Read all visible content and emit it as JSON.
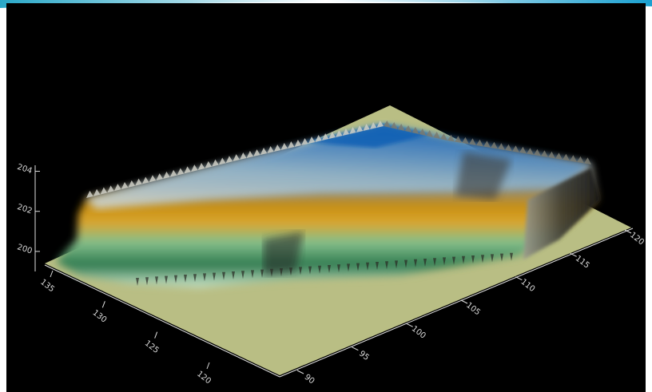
{
  "chart_data": {
    "type": "surface3d",
    "title": "",
    "xlabel": "",
    "ylabel": "",
    "zlabel": "",
    "grid": false,
    "background": "#000000",
    "floor_color": "#b9be84",
    "z_axis": {
      "range": [
        199,
        204.5
      ],
      "ticks": [
        200,
        202,
        204
      ],
      "tick_labels": [
        "200",
        "202",
        "204"
      ]
    },
    "front_axis": {
      "ticks": [
        120,
        125,
        130,
        135
      ],
      "tick_labels": [
        "120",
        "125",
        "130",
        "135"
      ]
    },
    "right_axis": {
      "ticks": [
        90,
        95,
        100,
        105,
        110,
        115,
        120
      ],
      "tick_labels": [
        "90",
        "95",
        "100",
        "105",
        "110",
        "115",
        "120"
      ]
    },
    "colormap": [
      "#2f7a4f",
      "#84bf8c",
      "#c88f10",
      "#b2b2a6",
      "#e7ecec",
      "#4f92c4",
      "#0f5fb4"
    ],
    "surface_ridge_z": [
      201.5,
      202.2,
      203.0,
      203.6,
      204.0,
      204.1,
      203.9,
      203.4,
      202.8,
      202.0
    ]
  }
}
